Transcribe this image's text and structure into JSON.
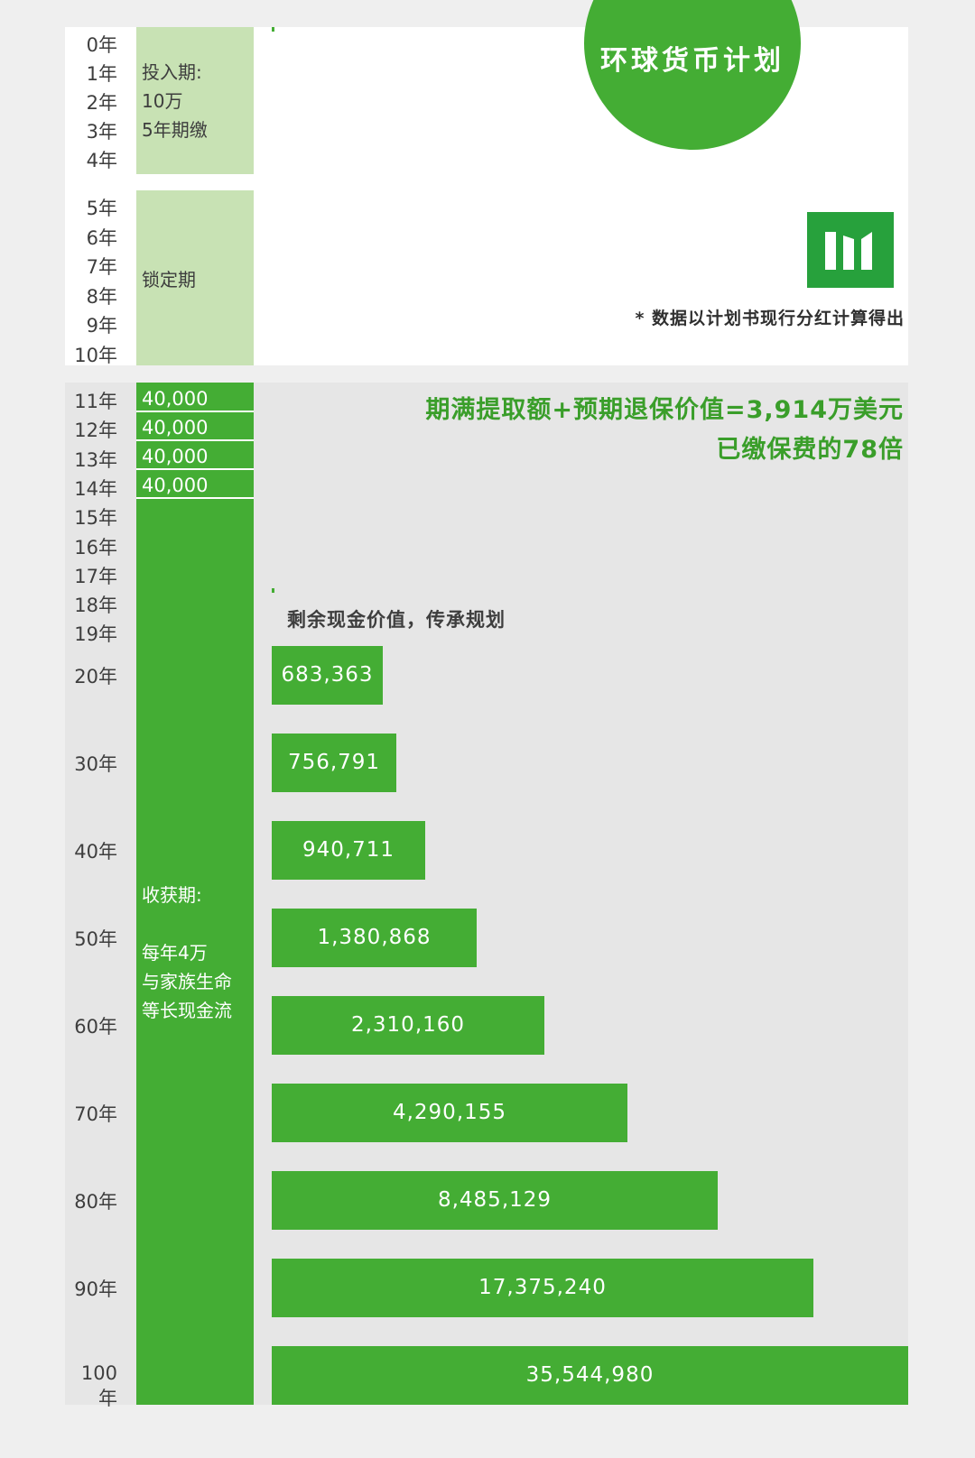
{
  "chart_data": {
    "type": "bar",
    "title": "环球货币计划",
    "note": "* 数据以计划书现行分红计算得出",
    "years_top": [
      "0年",
      "1年",
      "2年",
      "3年",
      "4年",
      "5年",
      "6年",
      "7年",
      "8年",
      "9年",
      "10年"
    ],
    "years_mid": [
      "11年",
      "12年",
      "13年",
      "14年",
      "15年",
      "16年",
      "17年",
      "18年",
      "19年"
    ],
    "phases": {
      "invest": "投入期:\n10万\n5年期缴",
      "lock": "锁定期",
      "harvest": "收获期:\n\n每年4万\n与家族生命\n等长现金流"
    },
    "withdrawals": [
      "40,000",
      "40,000",
      "40,000",
      "40,000"
    ],
    "headline": [
      "期满提取额+预期退保价值=3,914万美元",
      "已缴保费的78倍"
    ],
    "sub_caption": "剩余现金价值，传承规划",
    "categories": [
      "20年",
      "30年",
      "40年",
      "50年",
      "60年",
      "70年",
      "80年",
      "90年",
      "100年"
    ],
    "values": [
      683363,
      756791,
      940711,
      1380868,
      2310160,
      4290155,
      8485129,
      17375240,
      35544980
    ],
    "value_labels": [
      "683,363",
      "756,791",
      "940,711",
      "1,380,868",
      "2,310,160",
      "4,290,155",
      "8,485,129",
      "17,375,240",
      "35,544,980"
    ],
    "colors": {
      "bar": "#44ad34",
      "light_green": "#c8e2b4",
      "headline": "#3a9e2a"
    }
  }
}
